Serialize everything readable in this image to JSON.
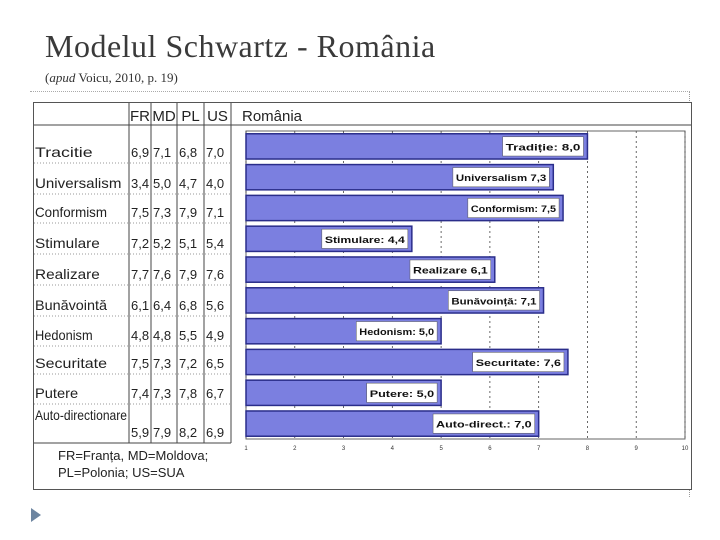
{
  "slide": {
    "title": "Modelul Schwartz - România",
    "subtitle_italic": "apud",
    "subtitle_rest": " Voicu, 2010, p. 19)",
    "subtitle_open": "("
  },
  "table": {
    "columns": [
      "FR",
      "MD",
      "PL",
      "US"
    ],
    "rows": [
      {
        "label": "Tracitie",
        "values": [
          "6,9",
          "7,1",
          "6,8",
          "7,0"
        ]
      },
      {
        "label": "Universalism",
        "values": [
          "3,4",
          "5,0",
          "4,7",
          "4,0"
        ]
      },
      {
        "label": "Conformism",
        "values": [
          "7,5",
          "7,3",
          "7,9",
          "7,1"
        ]
      },
      {
        "label": "Stimulare",
        "values": [
          "7,2",
          "5,2",
          "5,1",
          "5,4"
        ]
      },
      {
        "label": "Realizare",
        "values": [
          "7,7",
          "7,6",
          "7,9",
          "7,6"
        ]
      },
      {
        "label": "Bunăvointă",
        "values": [
          "6,1",
          "6,4",
          "6,8",
          "5,6"
        ]
      },
      {
        "label": "Hedonism",
        "values": [
          "4,8",
          "4,8",
          "5,5",
          "4,9"
        ]
      },
      {
        "label": "Securitate",
        "values": [
          "7,5",
          "7,3",
          "7,2",
          "6,5"
        ]
      },
      {
        "label": "Putere",
        "values": [
          "7,4",
          "7,3",
          "7,8",
          "6,7"
        ]
      },
      {
        "label": "Auto-directionare",
        "values": [
          "5,9",
          "7,9",
          "8,2",
          "6,9"
        ]
      }
    ],
    "legend_lines": [
      "FR=Franța,  MD=Moldova;",
      "PL=Polonia;  US=SUA"
    ]
  },
  "colors": {
    "bar_fill": "#7b7fe0",
    "bar_stroke": "#2a2d8a",
    "label_box": "#ffffff",
    "plot_bg": "#ffffff",
    "grid": "#444444",
    "bullet": "#6d85a0"
  },
  "chart_data": {
    "type": "bar",
    "orientation": "horizontal",
    "title": "România",
    "categories": [
      "Tradiție",
      "Universalism",
      "Conformism",
      "Stimulare",
      "Realizare",
      "Bunăvoință",
      "Hedonism",
      "Securitate",
      "Putere",
      "Auto-direct.:"
    ],
    "bar_labels": [
      "Tradiție:  8,0",
      "Universalism  7,3",
      "Conformism:  7,5",
      "Stimulare:  4,4",
      "Realizare  6,1",
      "Bunăvoință:  7,1",
      "Hedonism:  5,0",
      "Securitate:  7,6",
      "Putere:  5,0",
      "Auto-direct.:  7,0"
    ],
    "values": [
      8.0,
      7.3,
      7.5,
      4.4,
      6.1,
      7.1,
      5.0,
      7.6,
      5.0,
      7.0
    ],
    "x_ticks": [
      "1",
      "2",
      "3",
      "4",
      "5",
      "6",
      "7",
      "8",
      "9",
      "10"
    ],
    "xlim": [
      1,
      10
    ],
    "grid": true
  }
}
